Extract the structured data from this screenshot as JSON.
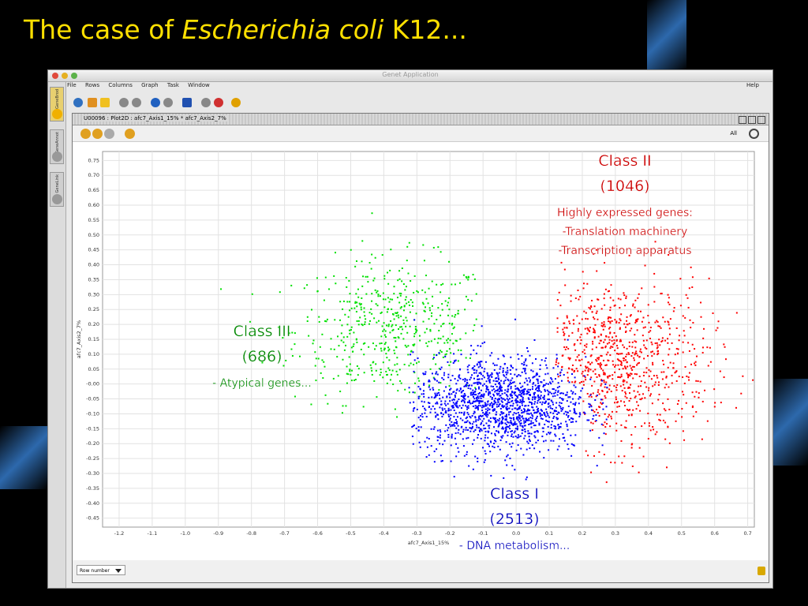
{
  "slide": {
    "title_pre": "The case of ",
    "title_italic": "Escherichia coli",
    "title_post": " K12..."
  },
  "window": {
    "title": "Genet Application"
  },
  "menu": [
    "File",
    "Rows",
    "Columns",
    "Graph",
    "Task",
    "Window"
  ],
  "menu_help": "Help",
  "sidebar_tabs": [
    "GeneBrod",
    "GeneAnnot",
    "GeneLink"
  ],
  "inner": {
    "title": "U00096 : Plot2D : afc7_Axis1_15% * afc7_Axis2_7%",
    "all_label": "All"
  },
  "bottom": {
    "select_value": "Row number"
  },
  "colors": {
    "class1": "#0000ff",
    "class2": "#ff0000",
    "class3": "#00e000",
    "title": "#ffe000"
  },
  "annotations": [
    {
      "lines": [
        "Class II",
        "(1046)",
        "Highly expressed genes:",
        "-Translation machinery",
        "-Transcription apparatus"
      ],
      "color": "#cc0000"
    },
    {
      "lines": [
        "Class III",
        "(686)",
        "- Atypical genes..."
      ],
      "color": "#008800"
    },
    {
      "lines": [
        "Class I",
        "(2513)",
        "- DNA metabolism..."
      ],
      "color": "#0000bb"
    }
  ],
  "chart_data": {
    "type": "scatter",
    "xlabel": "afc7_Axis1_15%",
    "ylabel": "afc7_Axis2_7%",
    "xlim": [
      -1.25,
      0.72
    ],
    "ylim": [
      -0.48,
      0.78
    ],
    "xticks": [
      "-1.2",
      "-1.1",
      "-1.0",
      "-0.9",
      "-0.8",
      "-0.7",
      "-0.6",
      "-0.5",
      "-0.4",
      "-0.3",
      "-0.2",
      "-0.1",
      "0.0",
      "0.1",
      "0.2",
      "0.3",
      "0.4",
      "0.5",
      "0.6",
      "0.7"
    ],
    "yticks": [
      "0.75",
      "0.70",
      "0.65",
      "0.60",
      "0.55",
      "0.50",
      "0.45",
      "0.40",
      "0.35",
      "0.30",
      "0.25",
      "0.20",
      "0.15",
      "0.10",
      "0.05",
      "-0.00",
      "-0.05",
      "-0.10",
      "-0.15",
      "-0.20",
      "-0.25",
      "-0.30",
      "-0.35",
      "-0.40",
      "-0.45"
    ],
    "grid": true,
    "series": [
      {
        "name": "Class I",
        "count": 2513,
        "color": "#0000ff",
        "center": [
          -0.05,
          -0.07
        ],
        "spread": [
          0.13,
          0.08
        ]
      },
      {
        "name": "Class II",
        "count": 1046,
        "color": "#ff0000",
        "center": [
          0.3,
          0.07
        ],
        "spread": [
          0.14,
          0.14
        ]
      },
      {
        "name": "Class III",
        "count": 686,
        "color": "#00e000",
        "center": [
          -0.37,
          0.18
        ],
        "spread": [
          0.15,
          0.12
        ]
      }
    ]
  }
}
